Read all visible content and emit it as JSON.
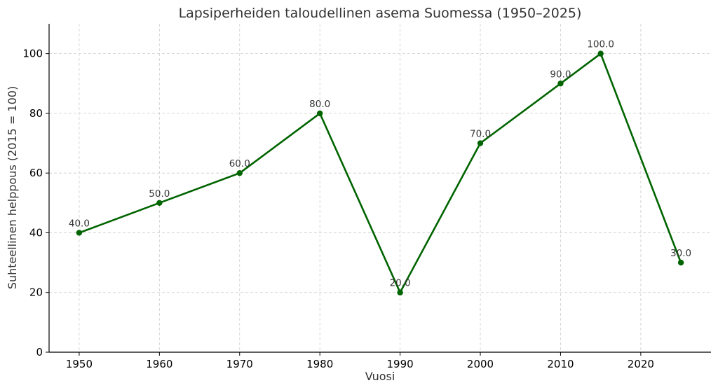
{
  "chart_data": {
    "type": "line",
    "title": "Lapsiperheiden taloudellinen asema Suomessa (1950–2025)",
    "xlabel": "Vuosi",
    "ylabel": "Suhteellinen helppous (2015 = 100)",
    "x": [
      1950,
      1960,
      1970,
      1980,
      1990,
      2000,
      2010,
      2015,
      2025
    ],
    "values": [
      40,
      50,
      60,
      80,
      20,
      70,
      90,
      100,
      30
    ],
    "data_labels": [
      "40.0",
      "50.0",
      "60.0",
      "80.0",
      "20.0",
      "70.0",
      "90.0",
      "100.0",
      "30.0"
    ],
    "xticks": [
      1950,
      1960,
      1970,
      1980,
      1990,
      2000,
      2010,
      2020
    ],
    "yticks": [
      0,
      20,
      40,
      60,
      80,
      100
    ],
    "xlim": [
      1946.25,
      2028.75
    ],
    "ylim": [
      0,
      110
    ],
    "grid": true,
    "color": "#006400"
  }
}
